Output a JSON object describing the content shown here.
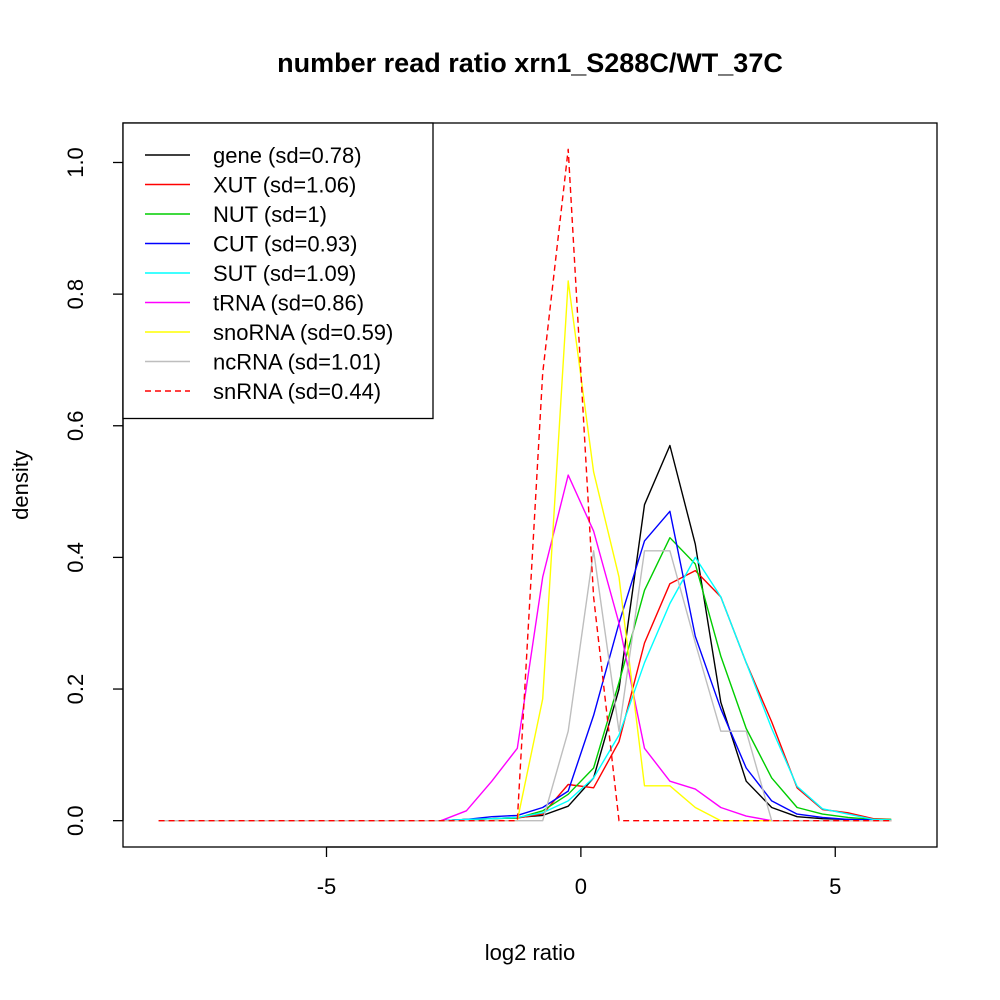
{
  "chart_data": {
    "type": "line",
    "title": "number read ratio xrn1_S288C/WT_37C",
    "xlabel": "log2 ratio",
    "ylabel": "density",
    "xlim": [
      -9,
      7
    ],
    "ylim": [
      -0.04,
      1.06
    ],
    "x_ticks": [
      -5,
      0,
      5
    ],
    "x_tick_labels": [
      "-5",
      "0",
      "5"
    ],
    "y_ticks": [
      0.0,
      0.2,
      0.4,
      0.6,
      0.8,
      1.0
    ],
    "y_tick_labels": [
      "0.0",
      "0.2",
      "0.4",
      "0.6",
      "0.8",
      "1.0"
    ],
    "legend_position": "top-left",
    "series": [
      {
        "name": "gene",
        "label": "gene (sd=0.78)",
        "color": "#000000",
        "dash": false,
        "x": [
          -8.3,
          -2.75,
          -2.25,
          -1.75,
          -1.25,
          -0.75,
          -0.25,
          0.25,
          0.75,
          1.25,
          1.75,
          2.25,
          2.75,
          3.25,
          3.75,
          4.25,
          4.75,
          5.25,
          5.75,
          6.1
        ],
        "y": [
          0.0,
          0.0,
          0.002,
          0.003,
          0.005,
          0.008,
          0.022,
          0.065,
          0.2,
          0.48,
          0.57,
          0.42,
          0.18,
          0.06,
          0.02,
          0.006,
          0.003,
          0.002,
          0.001,
          0.0
        ]
      },
      {
        "name": "XUT",
        "label": "XUT (sd=1.06)",
        "color": "#ff0000",
        "dash": false,
        "x": [
          -8.3,
          -2.75,
          -2.25,
          -1.75,
          -1.25,
          -0.75,
          -0.25,
          0.25,
          0.75,
          1.25,
          1.75,
          2.25,
          2.75,
          3.25,
          3.75,
          4.25,
          4.75,
          5.25,
          5.75,
          6.1
        ],
        "y": [
          0.0,
          0.0,
          0.002,
          0.003,
          0.004,
          0.01,
          0.055,
          0.05,
          0.12,
          0.27,
          0.36,
          0.38,
          0.34,
          0.24,
          0.15,
          0.05,
          0.017,
          0.012,
          0.003,
          0.002
        ]
      },
      {
        "name": "NUT",
        "label": "NUT (sd=1)",
        "color": "#00cd00",
        "dash": false,
        "x": [
          -8.3,
          -2.75,
          -2.25,
          -1.75,
          -1.25,
          -0.75,
          -0.25,
          0.25,
          0.75,
          1.25,
          1.75,
          2.25,
          2.75,
          3.25,
          3.75,
          4.25,
          4.75,
          5.25,
          5.75,
          6.1
        ],
        "y": [
          0.0,
          0.0,
          0.002,
          0.003,
          0.004,
          0.015,
          0.04,
          0.08,
          0.21,
          0.35,
          0.43,
          0.39,
          0.25,
          0.14,
          0.065,
          0.02,
          0.01,
          0.005,
          0.002,
          0.002
        ]
      },
      {
        "name": "CUT",
        "label": "CUT (sd=0.93)",
        "color": "#0000ff",
        "dash": false,
        "x": [
          -8.3,
          -2.75,
          -2.25,
          -1.75,
          -1.25,
          -0.75,
          -0.25,
          0.25,
          0.75,
          1.25,
          1.75,
          2.25,
          2.75,
          3.25,
          3.75,
          4.25,
          4.75,
          5.25,
          5.75,
          6.1
        ],
        "y": [
          0.0,
          0.0,
          0.002,
          0.006,
          0.008,
          0.02,
          0.045,
          0.16,
          0.3,
          0.425,
          0.47,
          0.28,
          0.17,
          0.08,
          0.03,
          0.01,
          0.005,
          0.002,
          0.001,
          0.0
        ]
      },
      {
        "name": "SUT",
        "label": "SUT (sd=1.09)",
        "color": "#00ffff",
        "dash": false,
        "x": [
          -8.3,
          -2.75,
          -2.25,
          -1.75,
          -1.25,
          -0.75,
          -0.25,
          0.25,
          0.75,
          1.25,
          1.75,
          2.25,
          2.75,
          3.25,
          3.75,
          4.25,
          4.75,
          5.25,
          5.75,
          6.1
        ],
        "y": [
          0.0,
          0.0,
          0.002,
          0.003,
          0.005,
          0.012,
          0.03,
          0.065,
          0.13,
          0.24,
          0.33,
          0.4,
          0.34,
          0.24,
          0.14,
          0.052,
          0.018,
          0.01,
          0.002,
          0.001
        ]
      },
      {
        "name": "tRNA",
        "label": "tRNA (sd=0.86)",
        "color": "#ff00ff",
        "dash": false,
        "x": [
          -8.3,
          -2.75,
          -2.25,
          -1.75,
          -1.25,
          -0.75,
          -0.25,
          0.25,
          0.75,
          1.25,
          1.75,
          2.25,
          2.75,
          3.25,
          3.75,
          6.1
        ],
        "y": [
          0.0,
          0.0,
          0.015,
          0.06,
          0.11,
          0.37,
          0.525,
          0.44,
          0.3,
          0.11,
          0.06,
          0.048,
          0.02,
          0.007,
          0.0,
          0.0
        ]
      },
      {
        "name": "snoRNA",
        "label": "snoRNA (sd=0.59)",
        "color": "#ffff00",
        "dash": false,
        "x": [
          -8.3,
          -1.25,
          -0.75,
          -0.25,
          0.25,
          0.75,
          1.25,
          1.75,
          2.25,
          2.75,
          6.1
        ],
        "y": [
          0.0,
          0.0,
          0.185,
          0.82,
          0.53,
          0.37,
          0.053,
          0.053,
          0.02,
          0.0,
          0.0
        ]
      },
      {
        "name": "ncRNA",
        "label": "ncRNA (sd=1.01)",
        "color": "#bebebe",
        "dash": false,
        "x": [
          -8.3,
          -0.75,
          -0.25,
          0.25,
          0.75,
          1.25,
          1.75,
          2.25,
          2.75,
          3.25,
          3.75,
          6.1
        ],
        "y": [
          0.0,
          0.0,
          0.136,
          0.41,
          0.136,
          0.41,
          0.41,
          0.27,
          0.136,
          0.136,
          0.0,
          0.0
        ]
      },
      {
        "name": "snRNA",
        "label": "snRNA (sd=0.44)",
        "color": "#ff0000",
        "dash": true,
        "x": [
          -8.3,
          -1.25,
          -0.75,
          -0.25,
          0.25,
          0.75,
          6.1
        ],
        "y": [
          0.0,
          0.0,
          0.68,
          1.02,
          0.34,
          0.0,
          0.0
        ]
      }
    ]
  }
}
